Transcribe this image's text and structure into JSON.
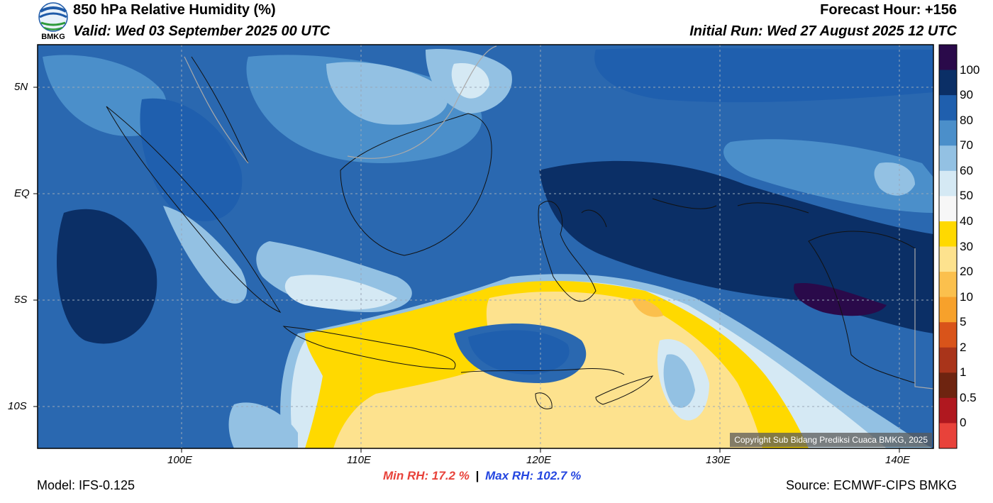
{
  "header": {
    "title": "850 hPa Relative Humidity (%)",
    "valid": "Valid: Wed 03 September 2025 00 UTC",
    "forecast_hour": "Forecast Hour: +156",
    "initial_run": "Initial Run: Wed 27 August 2025 12 UTC",
    "logo_text": "BMKG"
  },
  "axes": {
    "lat_ticks": [
      "5N",
      "EQ",
      "5S",
      "10S"
    ],
    "lon_ticks": [
      "100E",
      "110E",
      "120E",
      "130E",
      "140E"
    ]
  },
  "colorbar": {
    "labels": [
      "100",
      "90",
      "80",
      "70",
      "60",
      "50",
      "40",
      "30",
      "20",
      "10",
      "5",
      "2",
      "1",
      "0.5",
      "0"
    ],
    "colors": [
      "#2a0a4a",
      "#0b2f66",
      "#1f5fae",
      "#4b8fca",
      "#93c1e3",
      "#d5e9f4",
      "#f7f7f7",
      "#ffd900",
      "#fde28e",
      "#fbc04d",
      "#f7a12b",
      "#d9541a",
      "#a9341a",
      "#6e2410",
      "#b0181f",
      "#e8423a"
    ]
  },
  "stats": {
    "min_label": "Min RH:  17.2 %",
    "separator": "|",
    "max_label": "Max RH: 102.7 %"
  },
  "footer": {
    "model": "Model: IFS-0.125",
    "source": "Source: ECMWF-CIPS BMKG",
    "copyright": "Copyright Sub Bidang Prediksi Cuaca BMKG, 2025"
  }
}
